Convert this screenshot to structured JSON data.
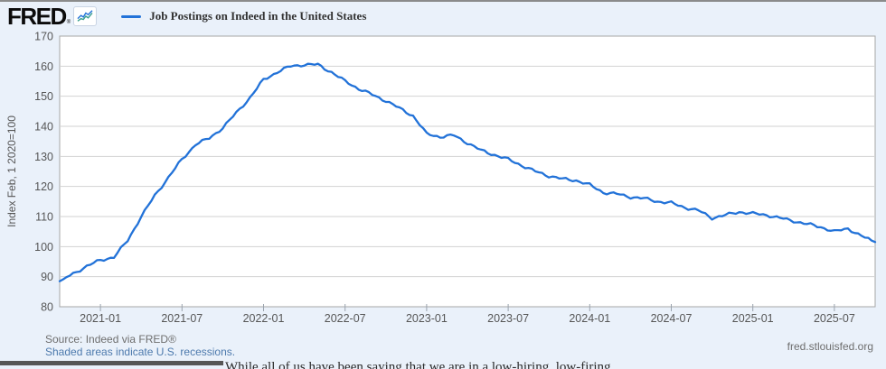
{
  "header": {
    "logo": "FRED",
    "registered_mark": "®",
    "legend_label": "Job Postings on Indeed in the United States"
  },
  "footer": {
    "source": "Source: Indeed via FRED®",
    "recession_note": "Shaded areas indicate U.S. recessions.",
    "site": "fred.stlouisfed.org"
  },
  "clipped_page_text": "While all of us have been saying that we are in a low-hiring, low-firing",
  "chart_data": {
    "type": "line",
    "title": "Job Postings on Indeed in the United States",
    "ylabel": "Index Feb, 1 2020=100",
    "ylim": [
      80,
      170
    ],
    "y_ticks": [
      80,
      90,
      100,
      110,
      120,
      130,
      140,
      150,
      160,
      170
    ],
    "grid": "horizontal",
    "legend_position": "top-left",
    "line_color": "#2272d8",
    "axis_text_color": "#565656",
    "grid_color": "#d2d2d2",
    "border_color": "#a6a6a6",
    "x": [
      "2020-10",
      "2020-11",
      "2020-12",
      "2021-01",
      "2021-02",
      "2021-03",
      "2021-04",
      "2021-05",
      "2021-06",
      "2021-07",
      "2021-08",
      "2021-09",
      "2021-10",
      "2021-11",
      "2021-12",
      "2022-01",
      "2022-02",
      "2022-03",
      "2022-04",
      "2022-05",
      "2022-06",
      "2022-07",
      "2022-08",
      "2022-09",
      "2022-10",
      "2022-11",
      "2022-12",
      "2023-01",
      "2023-02",
      "2023-03",
      "2023-04",
      "2023-05",
      "2023-06",
      "2023-07",
      "2023-08",
      "2023-09",
      "2023-10",
      "2023-11",
      "2023-12",
      "2024-01",
      "2024-02",
      "2024-03",
      "2024-04",
      "2024-05",
      "2024-06",
      "2024-07",
      "2024-08",
      "2024-09",
      "2024-10",
      "2024-11",
      "2024-12",
      "2025-01",
      "2025-02",
      "2025-03",
      "2025-04",
      "2025-05",
      "2025-06",
      "2025-07",
      "2025-08",
      "2025-09",
      "2025-10"
    ],
    "values": [
      88.5,
      91,
      93.5,
      95.5,
      96.5,
      102,
      110,
      117,
      123,
      129,
      134,
      136,
      139.5,
      144.5,
      149.5,
      155.5,
      158,
      160,
      160.5,
      160.5,
      158,
      155,
      152.5,
      150.5,
      148.5,
      146,
      143.5,
      137.5,
      136.5,
      137,
      134.5,
      132,
      130.5,
      129,
      127,
      125,
      123.5,
      122.5,
      122,
      120.5,
      118,
      117.5,
      116.5,
      116,
      115,
      114.5,
      113,
      112,
      109.5,
      110.5,
      111.5,
      111,
      110.5,
      109.5,
      108.5,
      107.5,
      106.5,
      105,
      106,
      103.5,
      101.5
    ],
    "x_tick_labels": [
      "2021-01",
      "2021-07",
      "2022-01",
      "2022-07",
      "2023-01",
      "2023-07",
      "2024-01",
      "2024-07",
      "2025-01",
      "2025-07"
    ],
    "x_tick_indices": [
      3,
      9,
      15,
      21,
      27,
      33,
      39,
      45,
      51,
      57
    ]
  }
}
